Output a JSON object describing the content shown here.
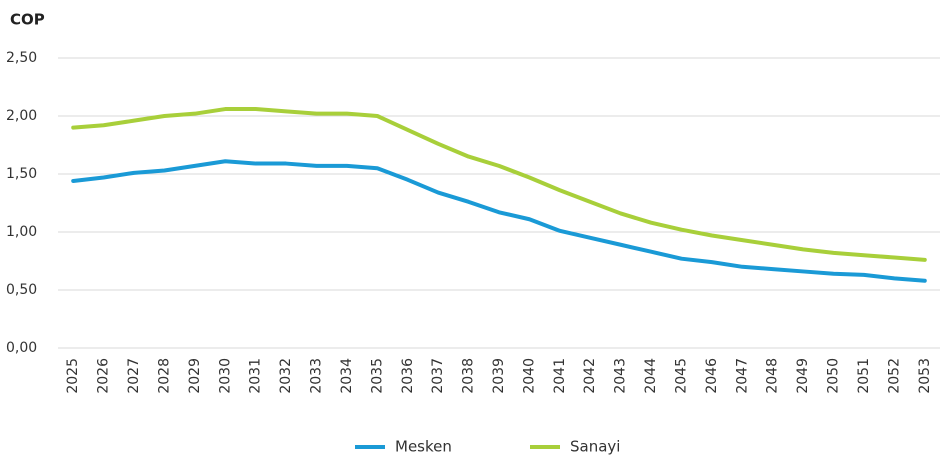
{
  "chart_data": {
    "type": "line",
    "y_label": "COP",
    "categories": [
      "2025",
      "2026",
      "2027",
      "2028",
      "2029",
      "2030",
      "2031",
      "2032",
      "2033",
      "2034",
      "2035",
      "2036",
      "2037",
      "2038",
      "2039",
      "2040",
      "2041",
      "2042",
      "2043",
      "2044",
      "2045",
      "2046",
      "2047",
      "2048",
      "2049",
      "2050",
      "2051",
      "2052",
      "2053"
    ],
    "series": [
      {
        "name": "Mesken",
        "color": "#1a9ad6",
        "values": [
          1.44,
          1.47,
          1.51,
          1.53,
          1.57,
          1.61,
          1.59,
          1.59,
          1.57,
          1.57,
          1.55,
          1.45,
          1.34,
          1.26,
          1.17,
          1.11,
          1.01,
          0.95,
          0.89,
          0.83,
          0.77,
          0.74,
          0.7,
          0.68,
          0.66,
          0.64,
          0.63,
          0.6,
          0.58
        ]
      },
      {
        "name": "Sanayi",
        "color": "#a8cf3a",
        "values": [
          1.9,
          1.92,
          1.96,
          2.0,
          2.02,
          2.06,
          2.06,
          2.04,
          2.02,
          2.02,
          2.0,
          1.88,
          1.76,
          1.65,
          1.57,
          1.47,
          1.36,
          1.26,
          1.16,
          1.08,
          1.02,
          0.97,
          0.93,
          0.89,
          0.85,
          0.82,
          0.8,
          0.78,
          0.76
        ]
      }
    ],
    "ylim": [
      0,
      2.5
    ],
    "yticks": [
      {
        "value": 0,
        "label": "0,00"
      },
      {
        "value": 0.5,
        "label": "0,50"
      },
      {
        "value": 1,
        "label": "1,00"
      },
      {
        "value": 1.5,
        "label": "1,50"
      },
      {
        "value": 2,
        "label": "2,00"
      },
      {
        "value": 2.5,
        "label": "2,50"
      }
    ],
    "grid": true
  }
}
